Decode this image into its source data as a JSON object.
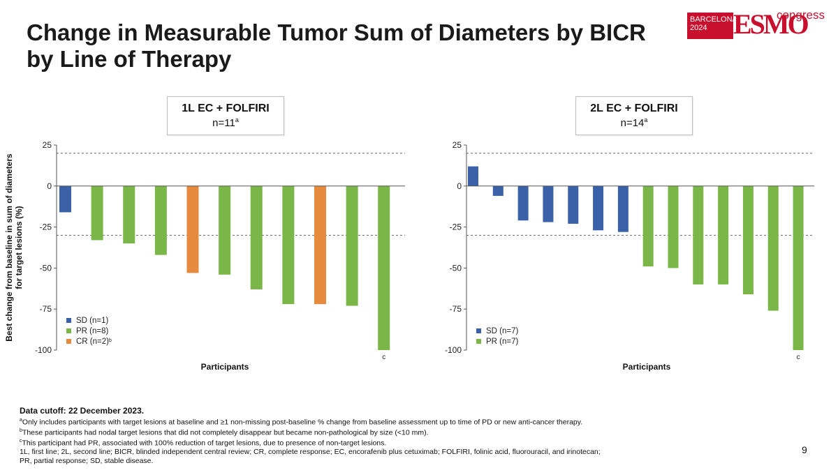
{
  "title": {
    "line1": "Change in Measurable Tumor Sum of Diameters by BICR",
    "line2": "by Line of Therapy"
  },
  "logo": {
    "city": "BARCELONA",
    "year": "2024",
    "brand": "ESMO",
    "suffix": "congress",
    "color": "#c8102e"
  },
  "y_axis_label": {
    "line1": "Best change from baseline in sum of diameters",
    "line2": "for target lesions (%)"
  },
  "colors": {
    "SD": "#3b62a8",
    "PR": "#7ab648",
    "CR": "#e58a3f"
  },
  "chart_data": [
    {
      "type": "bar",
      "header": "1L EC + FOLFIRI",
      "n_label": "n=11",
      "n_sup": "a",
      "xlabel": "Participants",
      "ylim": [
        -100,
        25
      ],
      "yticks": [
        "25",
        "0",
        "-25",
        "-50",
        "-75",
        "-100"
      ],
      "reference_lines": [
        20,
        -30
      ],
      "values": [
        -16,
        -33,
        -35,
        -42,
        -53,
        -54,
        -63,
        -72,
        -72,
        -73,
        -100
      ],
      "response": [
        "SD",
        "PR",
        "PR",
        "PR",
        "CR",
        "PR",
        "PR",
        "PR",
        "CR",
        "PR",
        "PR"
      ],
      "bar_annotations": {
        "10": "c"
      },
      "legend": [
        {
          "key": "SD",
          "label": "SD (n=1)",
          "sup": ""
        },
        {
          "key": "PR",
          "label": "PR (n=8)",
          "sup": ""
        },
        {
          "key": "CR",
          "label": "CR (n=2)",
          "sup": "b"
        }
      ]
    },
    {
      "type": "bar",
      "header": "2L EC + FOLFIRI",
      "n_label": "n=14",
      "n_sup": "a",
      "xlabel": "Participants",
      "ylim": [
        -100,
        25
      ],
      "yticks": [
        "25",
        "0",
        "-25",
        "-50",
        "-75",
        "-100"
      ],
      "reference_lines": [
        20,
        -30
      ],
      "values": [
        12,
        -6,
        -21,
        -22,
        -23,
        -27,
        -28,
        -49,
        -50,
        -60,
        -60,
        -66,
        -76,
        -100
      ],
      "response": [
        "SD",
        "SD",
        "SD",
        "SD",
        "SD",
        "SD",
        "SD",
        "PR",
        "PR",
        "PR",
        "PR",
        "PR",
        "PR",
        "PR"
      ],
      "bar_annotations": {
        "13": "c"
      },
      "legend": [
        {
          "key": "SD",
          "label": "SD (n=7)",
          "sup": ""
        },
        {
          "key": "PR",
          "label": "PR (n=7)",
          "sup": ""
        }
      ]
    }
  ],
  "footer": {
    "cutoff": "Data cutoff: 22 December 2023.",
    "notes": [
      {
        "sup": "a",
        "text": "Only includes participants with target lesions at baseline and ≥1 non-missing post-baseline % change from baseline assessment up to time of PD or new anti-cancer therapy."
      },
      {
        "sup": "b",
        "text": "These participants had nodal target lesions that did not completely disappear but became non-pathological by size (<10 mm)."
      },
      {
        "sup": "c",
        "text": "This participant had PR, associated with 100% reduction of target lesions, due to presence of non-target lesions."
      }
    ],
    "abbrev1": "1L, first line; 2L, second line; BICR, blinded independent central review; CR, complete response; EC, encorafenib plus cetuximab; FOLFIRI, folinic acid, fluorouracil, and irinotecan;",
    "abbrev2": "PR, partial response; SD, stable disease."
  },
  "page_number": "9"
}
